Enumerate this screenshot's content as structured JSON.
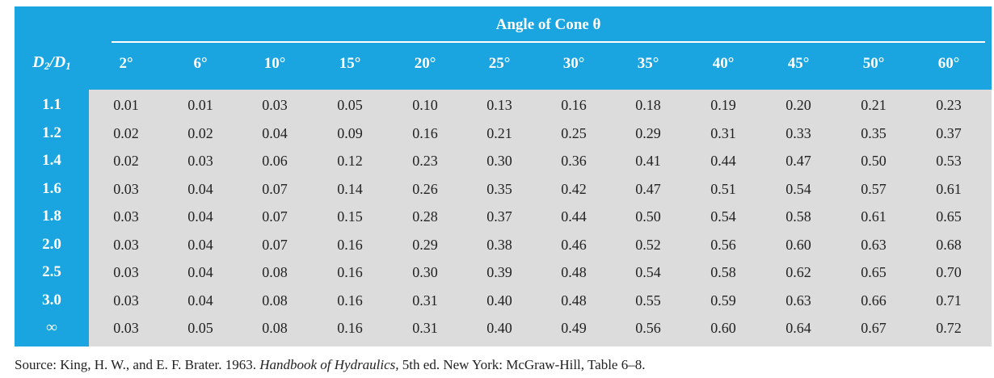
{
  "table": {
    "group_header": "Angle of Cone θ",
    "row_header": {
      "d2": "D",
      "sub2": "2",
      "slash": "/",
      "d1": "D",
      "sub1": "1"
    },
    "columns": [
      "2°",
      "6°",
      "10°",
      "15°",
      "20°",
      "25°",
      "30°",
      "35°",
      "40°",
      "45°",
      "50°",
      "60°"
    ],
    "rows": [
      {
        "label": "1.1",
        "values": [
          "0.01",
          "0.01",
          "0.03",
          "0.05",
          "0.10",
          "0.13",
          "0.16",
          "0.18",
          "0.19",
          "0.20",
          "0.21",
          "0.23"
        ]
      },
      {
        "label": "1.2",
        "values": [
          "0.02",
          "0.02",
          "0.04",
          "0.09",
          "0.16",
          "0.21",
          "0.25",
          "0.29",
          "0.31",
          "0.33",
          "0.35",
          "0.37"
        ]
      },
      {
        "label": "1.4",
        "values": [
          "0.02",
          "0.03",
          "0.06",
          "0.12",
          "0.23",
          "0.30",
          "0.36",
          "0.41",
          "0.44",
          "0.47",
          "0.50",
          "0.53"
        ]
      },
      {
        "label": "1.6",
        "values": [
          "0.03",
          "0.04",
          "0.07",
          "0.14",
          "0.26",
          "0.35",
          "0.42",
          "0.47",
          "0.51",
          "0.54",
          "0.57",
          "0.61"
        ]
      },
      {
        "label": "1.8",
        "values": [
          "0.03",
          "0.04",
          "0.07",
          "0.15",
          "0.28",
          "0.37",
          "0.44",
          "0.50",
          "0.54",
          "0.58",
          "0.61",
          "0.65"
        ]
      },
      {
        "label": "2.0",
        "values": [
          "0.03",
          "0.04",
          "0.07",
          "0.16",
          "0.29",
          "0.38",
          "0.46",
          "0.52",
          "0.56",
          "0.60",
          "0.63",
          "0.68"
        ]
      },
      {
        "label": "2.5",
        "values": [
          "0.03",
          "0.04",
          "0.08",
          "0.16",
          "0.30",
          "0.39",
          "0.48",
          "0.54",
          "0.58",
          "0.62",
          "0.65",
          "0.70"
        ]
      },
      {
        "label": "3.0",
        "values": [
          "0.03",
          "0.04",
          "0.08",
          "0.16",
          "0.31",
          "0.40",
          "0.48",
          "0.55",
          "0.59",
          "0.63",
          "0.66",
          "0.71"
        ]
      },
      {
        "label": "∞",
        "values": [
          "0.03",
          "0.05",
          "0.08",
          "0.16",
          "0.31",
          "0.40",
          "0.49",
          "0.56",
          "0.60",
          "0.64",
          "0.67",
          "0.72"
        ]
      }
    ],
    "header_color": "#1ba5e0",
    "body_color": "#dcdcdc"
  },
  "source": {
    "prefix": "Source:",
    "authors": " King, H. W., and E. F. Brater. 1963. ",
    "book": "Handbook of Hydraulics,",
    "rest": " 5th ed. New York: McGraw-Hill, Table 6–8."
  }
}
